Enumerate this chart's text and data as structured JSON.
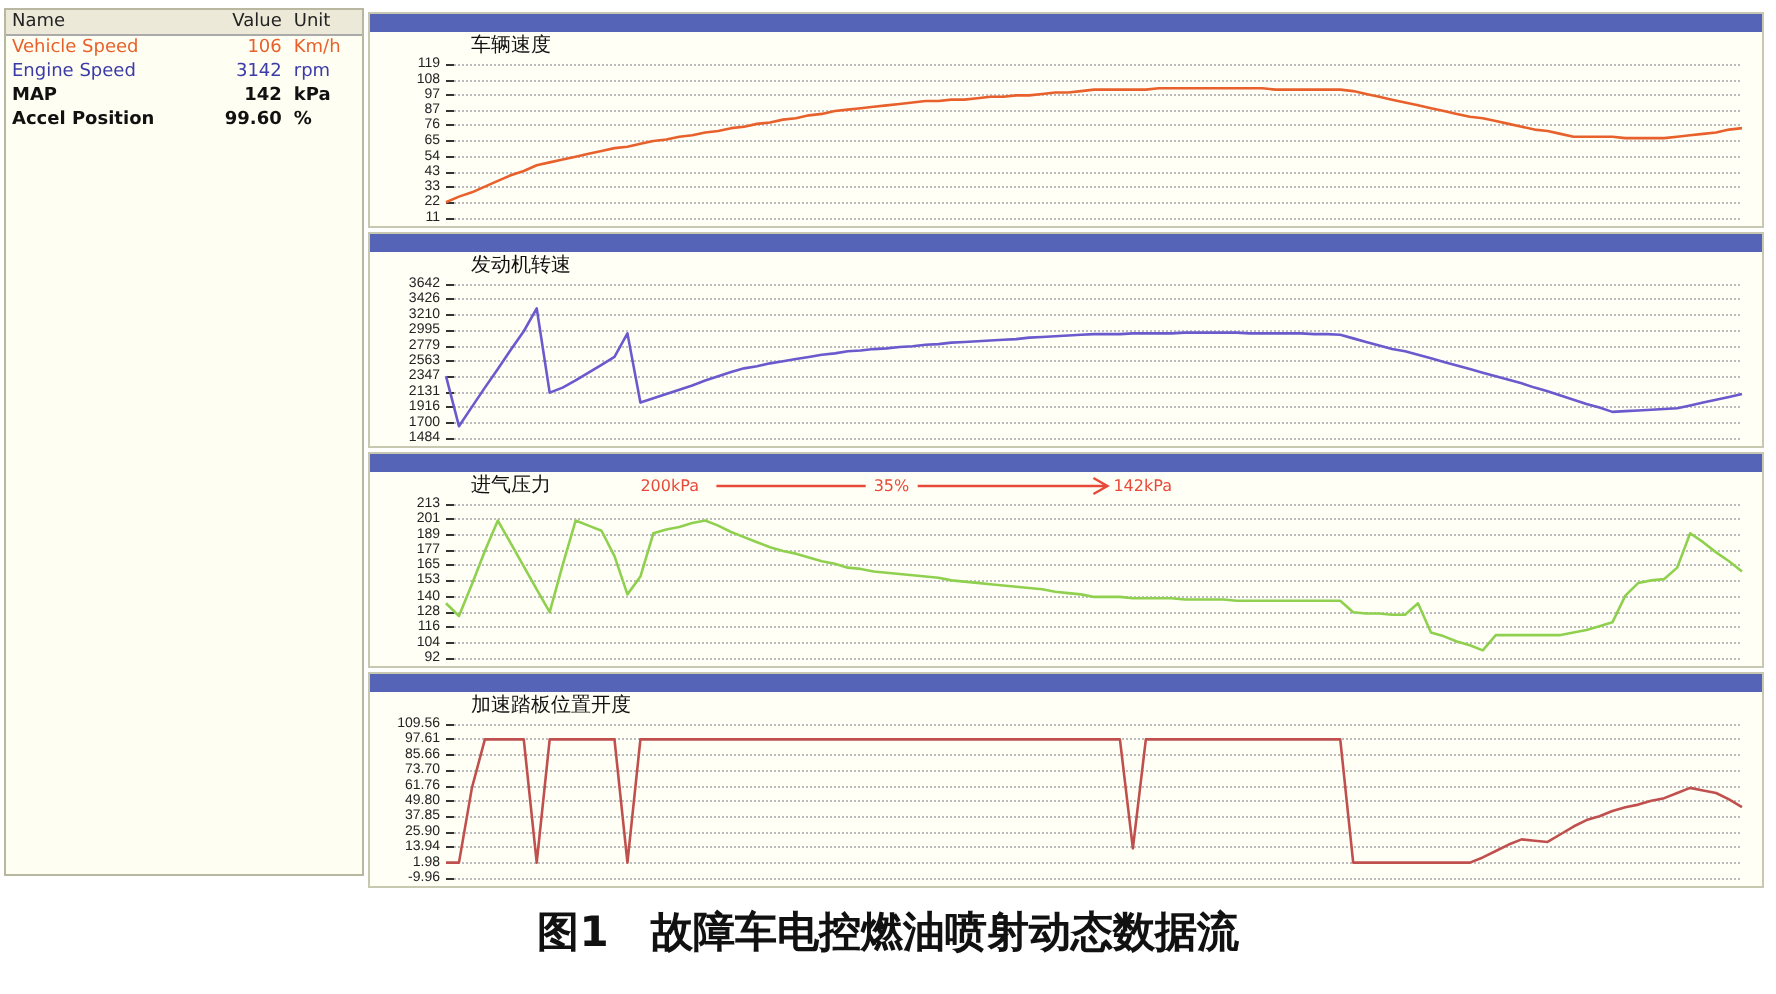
{
  "chart_data": [
    {
      "type": "other",
      "annotations": [
        "Name",
        "Value",
        "Unit",
        "Vehicle Speed",
        "106",
        "Km/h",
        "Engine Speed",
        "3142",
        "rpm",
        "MAP",
        "142",
        "kPa",
        "Accel Position",
        "99.60",
        "%",
        "图1　故障车电控燃油喷射动态数据流"
      ]
    },
    {
      "type": "line",
      "categories": [
        null,
        null,
        null,
        null,
        null,
        null,
        null,
        null,
        null,
        null,
        null,
        null,
        null,
        null,
        null,
        null,
        null,
        null,
        null,
        null,
        null,
        null,
        null,
        null,
        null,
        null,
        null,
        null,
        null,
        null,
        null,
        null,
        null,
        null,
        null,
        null,
        null,
        null,
        null,
        null,
        null,
        null,
        null,
        null,
        null,
        null,
        null,
        null,
        null,
        null,
        null,
        null,
        null,
        null,
        null,
        null,
        null,
        null,
        null,
        null,
        null,
        null,
        null,
        null,
        null,
        null,
        null,
        null,
        null,
        null,
        null,
        null,
        null,
        null,
        null,
        null,
        null,
        null,
        null,
        null,
        null,
        null,
        null,
        null,
        null,
        null,
        null,
        null,
        null,
        null,
        null,
        null,
        null,
        null,
        null,
        null,
        null,
        null,
        null,
        null,
        null
      ],
      "series": [
        {
          "color": "#e8612c",
          "values": [
            22,
            26,
            29,
            33,
            37,
            41,
            44,
            48,
            50,
            52,
            54,
            56,
            58,
            60,
            61,
            63,
            65,
            66,
            68,
            69,
            71,
            72,
            74,
            75,
            77,
            78,
            80,
            81,
            83,
            84,
            86,
            87,
            88,
            89,
            90,
            91,
            92,
            93,
            93,
            94,
            94,
            95,
            96,
            96,
            97,
            97,
            98,
            99,
            99,
            100,
            101,
            101,
            101,
            101,
            101,
            102,
            102,
            102,
            102,
            102,
            102,
            102,
            102,
            102,
            101,
            101,
            101,
            101,
            101,
            101,
            100,
            98,
            96,
            94,
            92,
            90,
            88,
            86,
            84,
            82,
            81,
            79,
            77,
            75,
            73,
            72,
            70,
            68,
            68,
            68,
            68,
            67,
            67,
            67,
            67,
            68,
            69,
            70,
            71,
            73,
            74
          ]
        }
      ],
      "ylim": [
        11,
        119
      ],
      "yticks": [
        11,
        22,
        33,
        43,
        54,
        65,
        76,
        87,
        97,
        108,
        119
      ],
      "tick_labels": "y",
      "grid": "y",
      "annotations": [
        "车辆速度"
      ]
    },
    {
      "type": "line",
      "categories": [
        null,
        null,
        null,
        null,
        null,
        null,
        null,
        null,
        null,
        null,
        null,
        null,
        null,
        null,
        null,
        null,
        null,
        null,
        null,
        null,
        null,
        null,
        null,
        null,
        null,
        null,
        null,
        null,
        null,
        null,
        null,
        null,
        null,
        null,
        null,
        null,
        null,
        null,
        null,
        null,
        null,
        null,
        null,
        null,
        null,
        null,
        null,
        null,
        null,
        null,
        null,
        null,
        null,
        null,
        null,
        null,
        null,
        null,
        null,
        null,
        null,
        null,
        null,
        null,
        null,
        null,
        null,
        null,
        null,
        null,
        null,
        null,
        null,
        null,
        null,
        null,
        null,
        null,
        null,
        null,
        null,
        null,
        null,
        null,
        null,
        null,
        null,
        null,
        null,
        null,
        null,
        null,
        null,
        null,
        null,
        null,
        null,
        null,
        null,
        null,
        null
      ],
      "series": [
        {
          "color": "#6a5acd",
          "values": [
            2350,
            1650,
            1920,
            2190,
            2450,
            2720,
            2980,
            3300,
            2120,
            2190,
            2290,
            2400,
            2510,
            2620,
            2950,
            1980,
            2040,
            2100,
            2160,
            2220,
            2290,
            2350,
            2410,
            2460,
            2490,
            2530,
            2560,
            2590,
            2620,
            2650,
            2670,
            2700,
            2710,
            2730,
            2740,
            2760,
            2770,
            2790,
            2800,
            2820,
            2830,
            2840,
            2850,
            2860,
            2870,
            2890,
            2900,
            2910,
            2920,
            2930,
            2940,
            2940,
            2940,
            2950,
            2950,
            2950,
            2950,
            2960,
            2960,
            2960,
            2960,
            2960,
            2950,
            2950,
            2950,
            2950,
            2950,
            2940,
            2940,
            2930,
            2880,
            2830,
            2780,
            2730,
            2700,
            2650,
            2600,
            2550,
            2500,
            2450,
            2400,
            2350,
            2300,
            2250,
            2190,
            2140,
            2080,
            2020,
            1960,
            1910,
            1850,
            1860,
            1870,
            1880,
            1890,
            1900,
            1940,
            1980,
            2020,
            2060,
            2100
          ]
        }
      ],
      "ylim": [
        1484,
        3642
      ],
      "yticks": [
        1484,
        1700,
        1916,
        2131,
        2347,
        2563,
        2779,
        2995,
        3210,
        3426,
        3642
      ],
      "tick_labels": "y",
      "grid": "y",
      "annotations": [
        "发动机转速"
      ]
    },
    {
      "type": "line",
      "categories": [
        null,
        null,
        null,
        null,
        null,
        null,
        null,
        null,
        null,
        null,
        null,
        null,
        null,
        null,
        null,
        null,
        null,
        null,
        null,
        null,
        null,
        null,
        null,
        null,
        null,
        null,
        null,
        null,
        null,
        null,
        null,
        null,
        null,
        null,
        null,
        null,
        null,
        null,
        null,
        null,
        null,
        null,
        null,
        null,
        null,
        null,
        null,
        null,
        null,
        null,
        null,
        null,
        null,
        null,
        null,
        null,
        null,
        null,
        null,
        null,
        null,
        null,
        null,
        null,
        null,
        null,
        null,
        null,
        null,
        null,
        null,
        null,
        null,
        null,
        null,
        null,
        null,
        null,
        null,
        null,
        null,
        null,
        null,
        null,
        null,
        null,
        null,
        null,
        null,
        null,
        null,
        null,
        null,
        null,
        null,
        null,
        null,
        null,
        null,
        null,
        null
      ],
      "series": [
        {
          "color": "#8fd14f",
          "values": [
            135,
            125,
            150,
            176,
            200,
            182,
            164,
            146,
            128,
            165,
            200,
            196,
            192,
            172,
            142,
            156,
            190,
            193,
            195,
            198,
            200,
            196,
            191,
            187,
            183,
            179,
            176,
            174,
            171,
            168,
            166,
            163,
            162,
            160,
            159,
            158,
            157,
            156,
            155,
            153,
            152,
            151,
            150,
            149,
            148,
            147,
            146,
            144,
            143,
            142,
            140,
            140,
            140,
            139,
            139,
            139,
            139,
            138,
            138,
            138,
            138,
            137,
            137,
            137,
            137,
            137,
            137,
            137,
            137,
            137,
            128,
            127,
            127,
            126,
            126,
            135,
            112,
            109,
            105,
            102,
            98,
            110,
            110,
            110,
            110,
            110,
            110,
            112,
            114,
            117,
            120,
            141,
            151,
            153,
            154,
            163,
            190,
            183,
            175,
            168,
            160
          ]
        }
      ],
      "ylim": [
        92,
        213
      ],
      "yticks": [
        92,
        104,
        116,
        128,
        140,
        153,
        165,
        177,
        189,
        201,
        213
      ],
      "tick_labels": "y",
      "grid": "y",
      "annotations": [
        "进气压力",
        "200kPa",
        "35%",
        "142kPa"
      ]
    },
    {
      "type": "line",
      "categories": [
        null,
        null,
        null,
        null,
        null,
        null,
        null,
        null,
        null,
        null,
        null,
        null,
        null,
        null,
        null,
        null,
        null,
        null,
        null,
        null,
        null,
        null,
        null,
        null,
        null,
        null,
        null,
        null,
        null,
        null,
        null,
        null,
        null,
        null,
        null,
        null,
        null,
        null,
        null,
        null,
        null,
        null,
        null,
        null,
        null,
        null,
        null,
        null,
        null,
        null,
        null,
        null,
        null,
        null,
        null,
        null,
        null,
        null,
        null,
        null,
        null,
        null,
        null,
        null,
        null,
        null,
        null,
        null,
        null,
        null,
        null,
        null,
        null,
        null,
        null,
        null,
        null,
        null,
        null,
        null,
        null,
        null,
        null,
        null,
        null,
        null,
        null,
        null,
        null,
        null,
        null,
        null,
        null,
        null,
        null,
        null,
        null,
        null,
        null,
        null,
        null
      ],
      "series": [
        {
          "color": "#c0504d",
          "values": [
            1.98,
            1.98,
            60,
            97.61,
            97.61,
            97.61,
            97.61,
            1.98,
            97.61,
            97.61,
            97.61,
            97.61,
            97.61,
            97.61,
            1.98,
            97.61,
            97.61,
            97.61,
            97.61,
            97.61,
            97.61,
            97.61,
            97.61,
            97.61,
            97.61,
            97.61,
            97.61,
            97.61,
            97.61,
            97.61,
            97.61,
            97.61,
            97.61,
            97.61,
            97.61,
            97.61,
            97.61,
            97.61,
            97.61,
            97.61,
            97.61,
            97.61,
            97.61,
            97.61,
            97.61,
            97.61,
            97.61,
            97.61,
            97.61,
            97.61,
            97.61,
            97.61,
            97.61,
            13,
            97.61,
            97.61,
            97.61,
            97.61,
            97.61,
            97.61,
            97.61,
            97.61,
            97.61,
            97.61,
            97.61,
            97.61,
            97.61,
            97.61,
            97.61,
            97.61,
            1.98,
            1.98,
            1.98,
            1.98,
            1.98,
            1.98,
            1.98,
            1.98,
            1.98,
            1.98,
            6,
            11,
            16,
            20,
            19,
            18,
            24,
            30,
            35,
            38,
            42,
            45,
            47,
            50,
            52,
            56,
            60,
            58,
            56,
            51,
            45
          ]
        }
      ],
      "ylim": [
        -9.96,
        109.56
      ],
      "yticks": [
        -9.96,
        1.98,
        13.94,
        {
          "value": 25.9,
          "label": "25.90"
        },
        37.85,
        {
          "value": 49.8,
          "label": "49.80"
        },
        61.76,
        {
          "value": 73.7,
          "label": "73.70"
        },
        85.66,
        97.61,
        109.56
      ],
      "tick_labels": "y",
      "grid": "y",
      "annotations": [
        "加速踏板位置开度"
      ]
    }
  ]
}
